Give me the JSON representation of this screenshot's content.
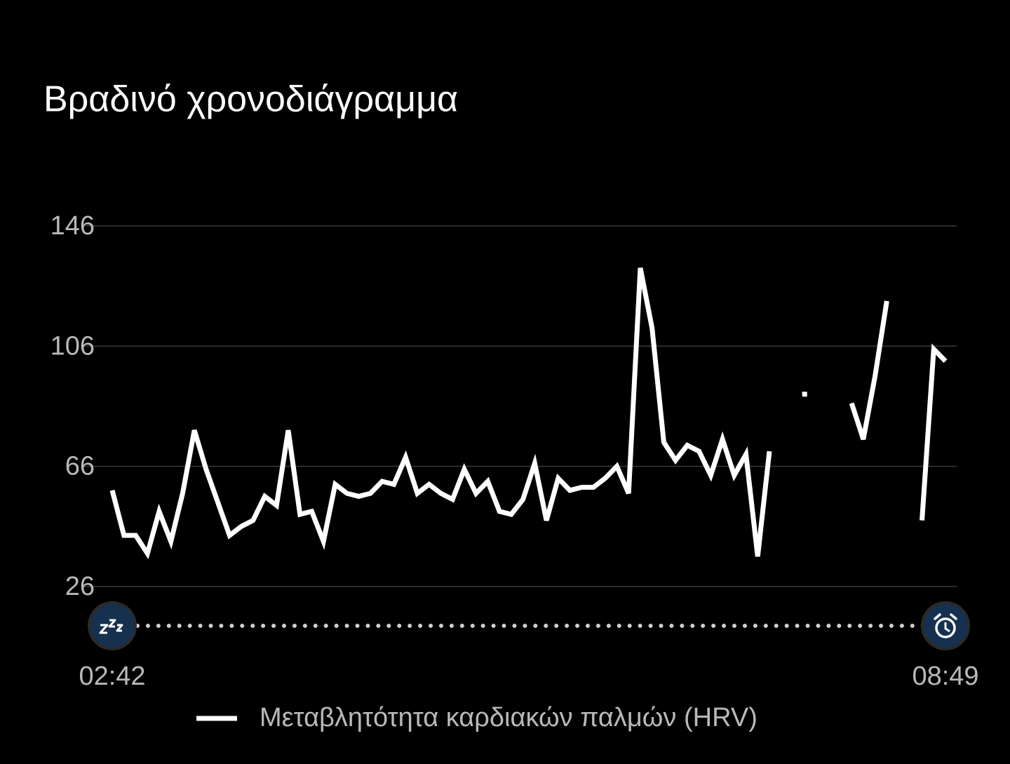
{
  "chart_data": {
    "type": "line",
    "title": "Βραδινό χρονοδιάγραμμα",
    "categories": [
      "02:42",
      null,
      null,
      null,
      null,
      null,
      null,
      null,
      null,
      null,
      null,
      null,
      null,
      null,
      null,
      null,
      null,
      null,
      null,
      null,
      null,
      null,
      null,
      null,
      null,
      null,
      null,
      null,
      null,
      null,
      null,
      null,
      null,
      null,
      null,
      null,
      null,
      null,
      null,
      null,
      null,
      null,
      null,
      null,
      null,
      null,
      null,
      null,
      null,
      null,
      null,
      null,
      null,
      null,
      null,
      null,
      null,
      null,
      null,
      null,
      null,
      null,
      null,
      null,
      null,
      null,
      null,
      null,
      null,
      null,
      null,
      "08:49"
    ],
    "series": [
      {
        "name": "Μεταβλητότητα καρδιακών παλμών (HRV)",
        "color": "#ffffff",
        "values": [
          58,
          43,
          43,
          37,
          51,
          41,
          57,
          78,
          65,
          54,
          43,
          46,
          48,
          56,
          53,
          78,
          50,
          51,
          41,
          60,
          57,
          56,
          57,
          61,
          60,
          69,
          57,
          60,
          57,
          55,
          65,
          57,
          61,
          51,
          50,
          55,
          67,
          48,
          62,
          58,
          59,
          59,
          62,
          66,
          57,
          132,
          112,
          74,
          68,
          73,
          71,
          63,
          75,
          63,
          70,
          36,
          71,
          null,
          null,
          90,
          null,
          null,
          null,
          87,
          75,
          96,
          121,
          null,
          null,
          48,
          105,
          101
        ]
      }
    ],
    "ylim": [
      26,
      146
    ],
    "yticks": [
      26,
      66,
      106,
      146
    ],
    "grid": true
  }
}
